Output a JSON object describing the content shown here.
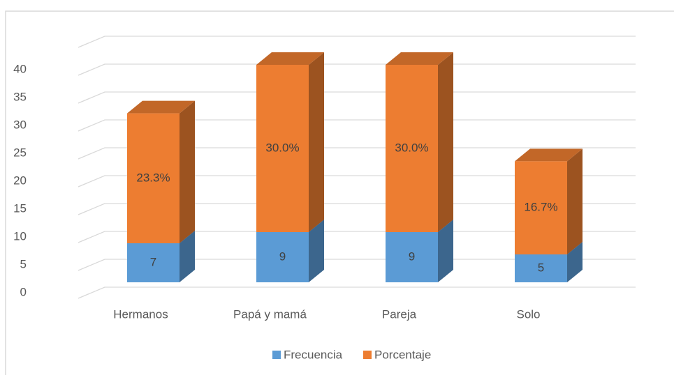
{
  "chart_data": {
    "type": "bar3d_stacked",
    "categories": [
      "Hermanos",
      "Papá y mamá",
      "Pareja",
      "Solo"
    ],
    "series": [
      {
        "name": "Frecuencia",
        "color": "#5b9bd5",
        "values": [
          7,
          9,
          9,
          5
        ]
      },
      {
        "name": "Porcentaje",
        "color": "#ed7d31",
        "values": [
          23.3,
          30.0,
          30.0,
          16.7
        ],
        "value_labels": [
          "23.3%",
          "30.0%",
          "30.0%",
          "16.7%"
        ]
      }
    ],
    "ylim": [
      0,
      45
    ],
    "yticks": [
      0,
      5,
      10,
      15,
      20,
      25,
      30,
      35,
      40
    ],
    "grid": true,
    "legend": "bottom"
  }
}
